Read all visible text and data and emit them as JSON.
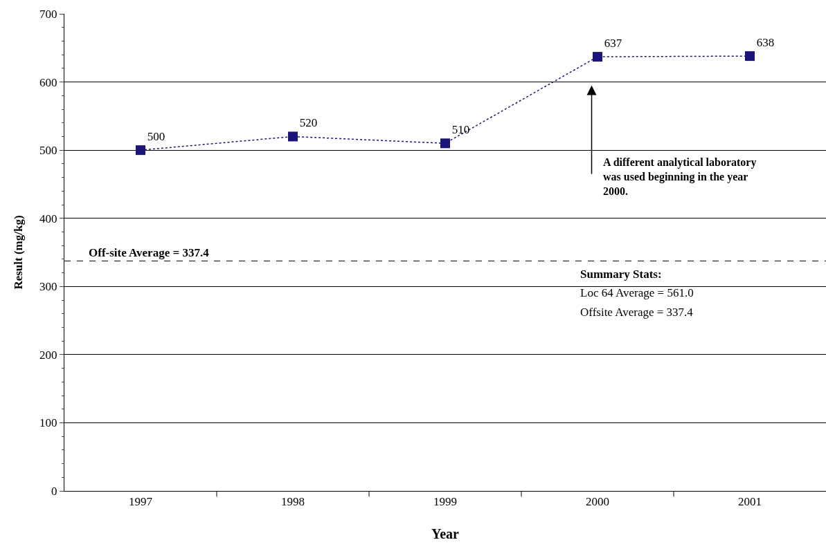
{
  "chart_data": {
    "type": "line",
    "xlabel": "Year",
    "ylabel": "Result (mg/kg)",
    "categories": [
      "1997",
      "1998",
      "1999",
      "2000",
      "2001"
    ],
    "series": [
      {
        "color": "#1c1478",
        "values": [
          500,
          520,
          510,
          637,
          638
        ]
      }
    ],
    "data_labels": true,
    "marker": "square",
    "line_style": "dotted",
    "ylim": [
      0,
      700
    ],
    "yticks": [
      0,
      100,
      200,
      300,
      400,
      500,
      600,
      700
    ],
    "grid": "y",
    "ref_lines": [
      {
        "axis": "y",
        "value": 337.4,
        "label": "Off-site Average = 337.4",
        "color": "#000000",
        "line_style": "dashed"
      }
    ],
    "annotations": [
      "A different analytical laboratory was used beginning in the year 2000.",
      "Summary Stats:",
      "Loc 64 Average = 561.0",
      "Offsite Average = 337.4"
    ]
  }
}
